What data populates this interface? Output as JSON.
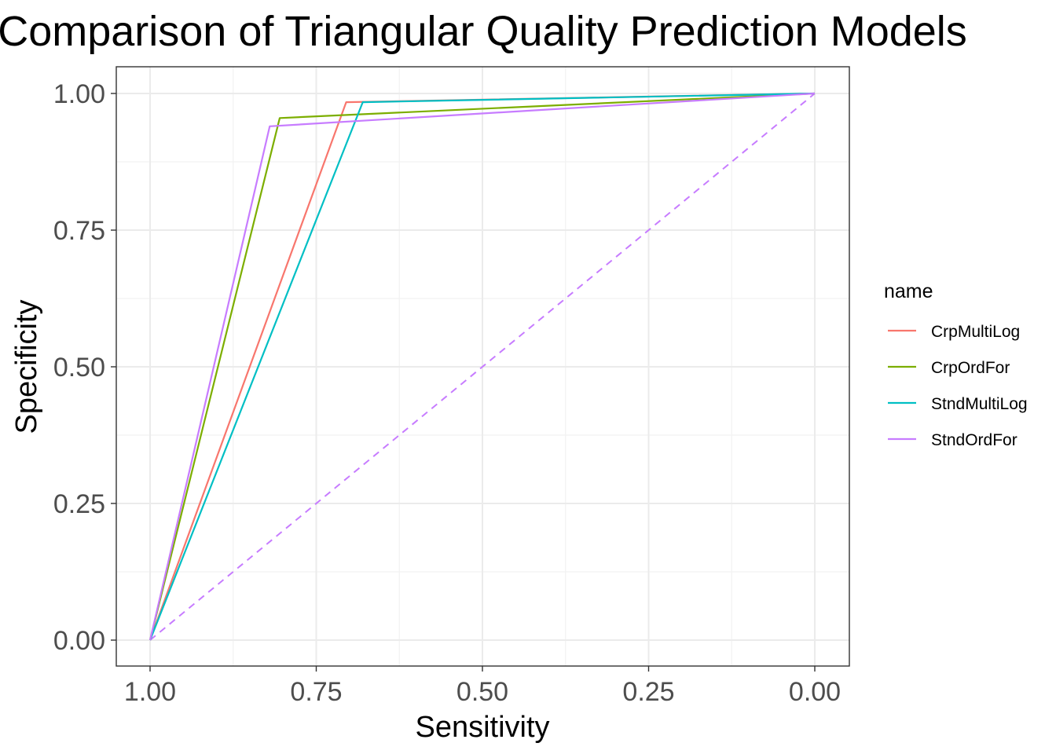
{
  "chart_data": {
    "type": "line",
    "title": "Comparison of Triangular Quality Prediction Models",
    "xlabel": "Sensitivity",
    "ylabel": "Specificity",
    "x_reversed": true,
    "xlim": [
      1.0,
      0.0
    ],
    "ylim": [
      0.0,
      1.0
    ],
    "xticks": [
      "1.00",
      "0.75",
      "0.50",
      "0.25",
      "0.00"
    ],
    "xtick_values": [
      1.0,
      0.75,
      0.5,
      0.25,
      0.0
    ],
    "yticks": [
      "0.00",
      "0.25",
      "0.50",
      "0.75",
      "1.00"
    ],
    "ytick_values": [
      0.0,
      0.25,
      0.5,
      0.75,
      1.0
    ],
    "grid": true,
    "legend": {
      "title": "name",
      "position": "right"
    },
    "series": [
      {
        "name": "CrpMultiLog",
        "color": "#F8766D",
        "x": [
          1.0,
          0.705,
          0.0
        ],
        "y": [
          0.0,
          0.984,
          1.0
        ]
      },
      {
        "name": "CrpOrdFor",
        "color": "#7CAE00",
        "x": [
          1.0,
          0.805,
          0.0
        ],
        "y": [
          0.0,
          0.955,
          1.0
        ]
      },
      {
        "name": "StndMultiLog",
        "color": "#00BFC4",
        "x": [
          1.0,
          0.68,
          0.0
        ],
        "y": [
          0.0,
          0.984,
          1.0
        ]
      },
      {
        "name": "StndOrdFor",
        "color": "#C77CFF",
        "x": [
          1.0,
          0.82,
          0.0
        ],
        "y": [
          0.0,
          0.94,
          1.0
        ]
      }
    ],
    "reference_line": {
      "color": "#C77CFF",
      "x": [
        1.0,
        0.0
      ],
      "y": [
        0.0,
        1.0
      ],
      "style": "dashed"
    }
  }
}
